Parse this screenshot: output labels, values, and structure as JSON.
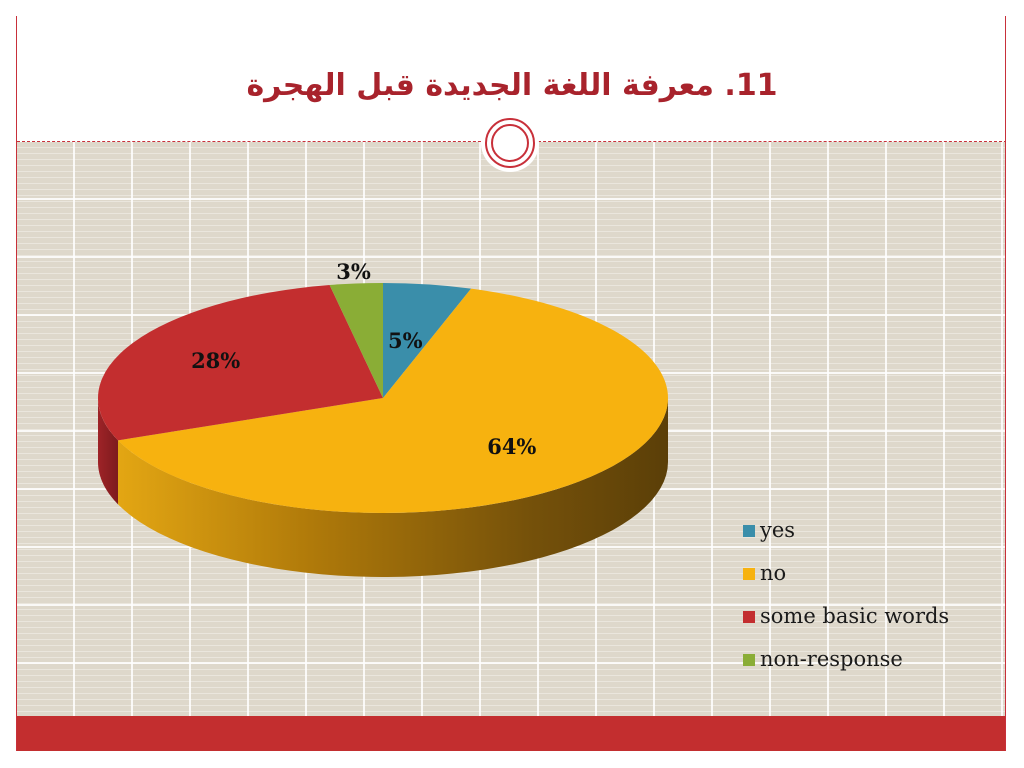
{
  "slide": {
    "title": "11. معرفة اللغة الجديدة قبل الهجرة"
  },
  "colors": {
    "accent": "#c32e2f",
    "title": "#a8232c",
    "background": "#ded8cb"
  },
  "chart_data": {
    "type": "pie",
    "style": "3d",
    "title": "",
    "categories": [
      "yes",
      "no",
      "some basic words",
      "non-response"
    ],
    "values": [
      5,
      64,
      28,
      3
    ],
    "labels": [
      "5%",
      "64%",
      "28%",
      "3%"
    ],
    "unit": "%",
    "colors": [
      "#3a8eaa",
      "#f7b20f",
      "#c32e2f",
      "#8aad36"
    ],
    "legend": {
      "position": "right",
      "entries": [
        "yes",
        "no",
        "some basic words",
        "non-response"
      ]
    }
  }
}
